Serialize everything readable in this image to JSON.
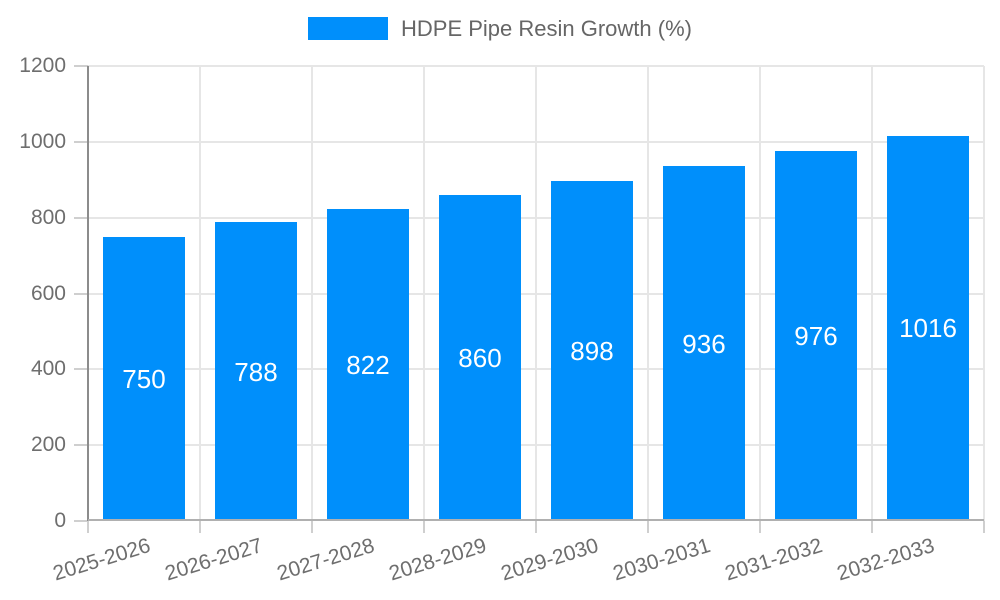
{
  "legend": {
    "label": "HDPE Pipe Resin Growth (%)"
  },
  "chart_data": {
    "type": "bar",
    "title": "HDPE Pipe Resin Growth (%)",
    "categories": [
      "2025-2026",
      "2026-2027",
      "2027-2028",
      "2028-2029",
      "2029-2030",
      "2030-2031",
      "2031-2032",
      "2032-2033"
    ],
    "values": [
      750,
      788,
      822,
      860,
      898,
      936,
      976,
      1016
    ],
    "xlabel": "",
    "ylabel": "",
    "ylim": [
      0,
      1200
    ],
    "yticks": [
      0,
      200,
      400,
      600,
      800,
      1000,
      1200
    ],
    "grid": true,
    "legend_position": "top-center",
    "x_tick_rotation_deg": -17,
    "value_labels": "centered-inside-bars",
    "colors": {
      "bar": "#008FFB",
      "value_label": "#FFFFFF",
      "axis_text": "#6E6E6E",
      "legend_text": "#666666",
      "gridline": "#E6E6E6",
      "x_axis_line": "#B0B0B0",
      "y_axis_line": "#8C8C8C",
      "tick": "#CFCFCF",
      "background": "#FFFFFF"
    }
  }
}
